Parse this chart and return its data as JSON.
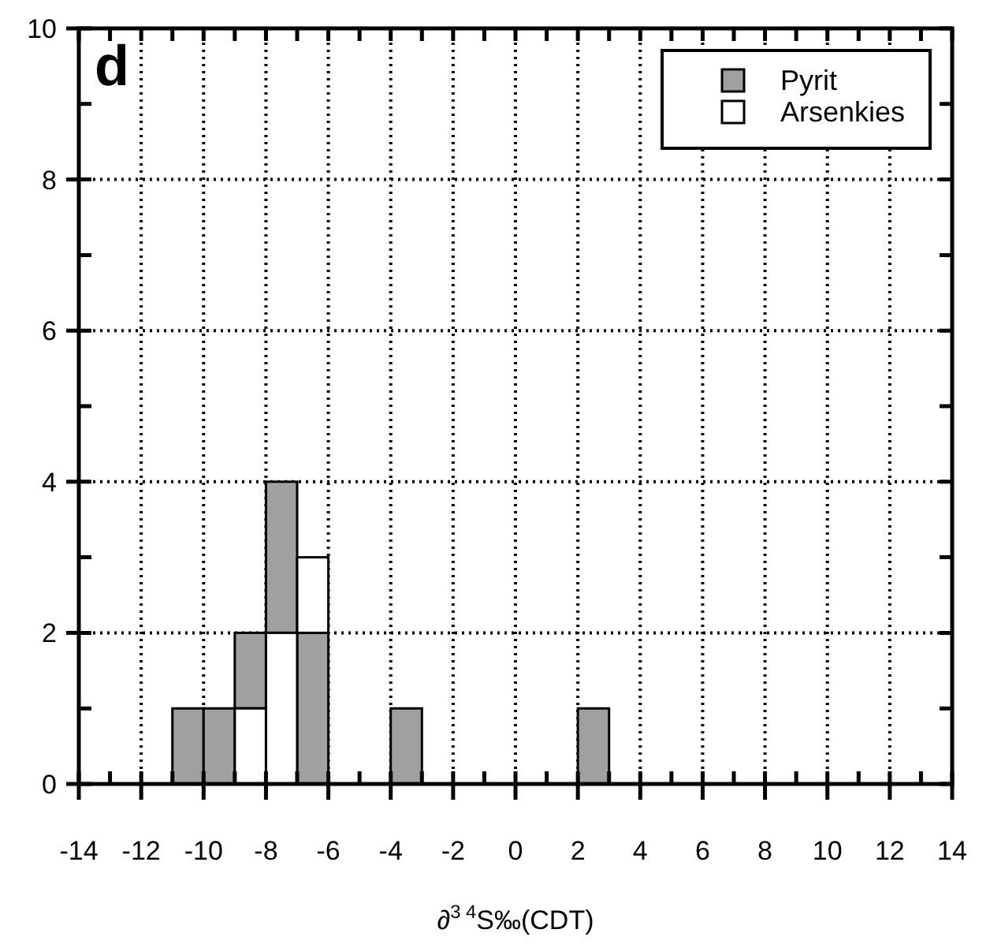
{
  "chart_data": {
    "type": "bar",
    "xlabel": "∂$^{3 4}$S‰(CDT)",
    "annotations": [
      "d"
    ],
    "x": [
      -10.5,
      -9.5,
      -8.5,
      -7.5,
      -6.5,
      -3.5,
      2.5
    ],
    "series": [
      {
        "name": "Pyrit",
        "color": "#a0a0a0",
        "values": [
          1,
          1,
          1,
          2,
          2,
          1,
          1
        ],
        "base": [
          0,
          0,
          1,
          2,
          0,
          0,
          0
        ]
      },
      {
        "name": "Arsenkies",
        "color": "#ffffff",
        "values": [
          null,
          null,
          1,
          2,
          1,
          null,
          null
        ],
        "base": [
          null,
          null,
          0,
          0,
          2,
          null,
          null
        ]
      }
    ],
    "xlim": [
      -14,
      14
    ],
    "xticks": [
      -14,
      -12,
      -10,
      -8,
      -6,
      -4,
      -2,
      0,
      2,
      4,
      6,
      8,
      10,
      12,
      14
    ],
    "ylim": [
      0,
      10
    ],
    "yticks": [
      0,
      2,
      4,
      6,
      8,
      10
    ],
    "grid": true,
    "legend": "top right"
  }
}
